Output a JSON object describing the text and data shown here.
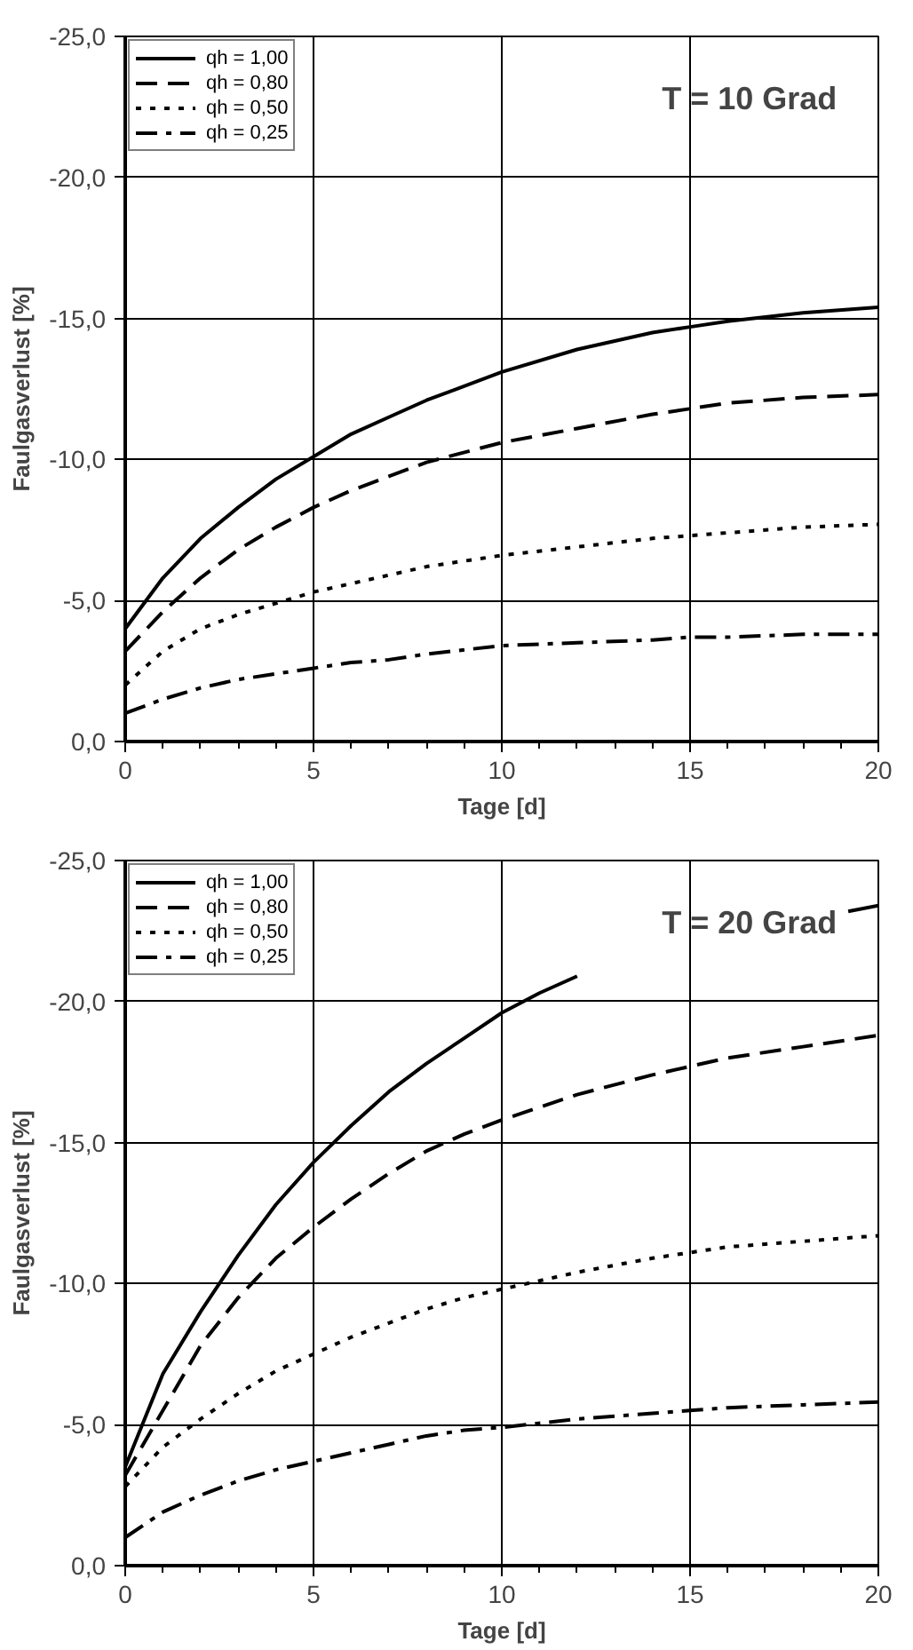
{
  "chart_data": [
    {
      "type": "line",
      "xlabel": "Tage [d]",
      "ylabel": "Faulgasverlust [%]",
      "annotations": [
        "T = 10 Grad"
      ],
      "xlim": [
        0,
        20
      ],
      "ylim": [
        0,
        -25
      ],
      "xticks": [
        0,
        5,
        10,
        15,
        20
      ],
      "yticks": [
        {
          "value": 0,
          "label": "0,0"
        },
        {
          "value": -5,
          "label": "-5,0"
        },
        {
          "value": -10,
          "label": "-10,0"
        },
        {
          "value": -15,
          "label": "-15,0"
        },
        {
          "value": -20,
          "label": "-20,0"
        },
        {
          "value": -25,
          "label": "-25,0"
        }
      ],
      "grid": true,
      "legend": "top left",
      "marker": "none",
      "x": [
        0,
        1,
        2,
        3,
        4,
        5,
        6,
        7,
        8,
        10,
        12,
        14,
        15,
        16,
        18,
        20
      ],
      "series": [
        {
          "name": "qh = 1,00",
          "color": "#000000",
          "line_style": "solid",
          "values": [
            -4.0,
            -5.8,
            -7.2,
            -8.3,
            -9.3,
            -10.1,
            -10.9,
            -11.5,
            -12.1,
            -13.1,
            -13.9,
            -14.5,
            -14.7,
            -14.9,
            -15.2,
            -15.4
          ]
        },
        {
          "name": "qh = 0,80",
          "color": "#000000",
          "line_style": "dashed",
          "values": [
            -3.2,
            -4.6,
            -5.8,
            -6.8,
            -7.6,
            -8.3,
            -8.9,
            -9.4,
            -9.9,
            -10.6,
            -11.1,
            -11.6,
            -11.8,
            -12.0,
            -12.2,
            -12.3
          ]
        },
        {
          "name": "qh = 0,50",
          "color": "#000000",
          "line_style": "dotted",
          "values": [
            -2.0,
            -3.2,
            -4.0,
            -4.5,
            -4.9,
            -5.3,
            -5.6,
            -5.9,
            -6.2,
            -6.6,
            -6.9,
            -7.2,
            -7.3,
            -7.4,
            -7.6,
            -7.7
          ]
        },
        {
          "name": "qh = 0,25",
          "color": "#000000",
          "line_style": "dashdot",
          "values": [
            -1.0,
            -1.5,
            -1.9,
            -2.2,
            -2.4,
            -2.6,
            -2.8,
            -2.9,
            -3.1,
            -3.4,
            -3.5,
            -3.6,
            -3.7,
            -3.7,
            -3.8,
            -3.8
          ]
        }
      ]
    },
    {
      "type": "line",
      "xlabel": "Tage [d]",
      "ylabel": "Faulgasverlust [%]",
      "annotations": [
        "T = 20 Grad"
      ],
      "xlim": [
        0,
        20
      ],
      "ylim": [
        0,
        -25
      ],
      "xticks": [
        0,
        5,
        10,
        15,
        20
      ],
      "yticks": [
        {
          "value": 0,
          "label": "0,0"
        },
        {
          "value": -5,
          "label": "-5,0"
        },
        {
          "value": -10,
          "label": "-10,0"
        },
        {
          "value": -15,
          "label": "-15,0"
        },
        {
          "value": -20,
          "label": "-20,0"
        },
        {
          "value": -25,
          "label": "-25,0"
        }
      ],
      "grid": true,
      "legend": "top left",
      "marker": "none",
      "x": [
        0,
        1,
        2,
        3,
        4,
        5,
        6,
        7,
        8,
        9,
        10,
        12,
        14,
        15,
        16,
        18,
        20
      ],
      "series": [
        {
          "name": "qh = 1,00",
          "color": "#000000",
          "line_style": "solid",
          "x": [
            0,
            1,
            2,
            3,
            4,
            5,
            6,
            7,
            8,
            9,
            10,
            11,
            12,
            15,
            19.2,
            20
          ],
          "values": [
            -3.5,
            -6.8,
            -9.0,
            -11.0,
            -12.8,
            -14.3,
            -15.6,
            -16.8,
            -17.8,
            -18.7,
            -19.6,
            -20.3,
            -20.9,
            null,
            -23.2,
            -23.4
          ]
        },
        {
          "name": "qh = 0,80",
          "color": "#000000",
          "line_style": "dashed",
          "values": [
            -3.2,
            -5.5,
            -7.8,
            -9.5,
            -10.9,
            -12.0,
            -13.0,
            -13.9,
            -14.7,
            -15.3,
            -15.8,
            -16.7,
            -17.4,
            -17.7,
            -18.0,
            -18.4,
            -18.8
          ]
        },
        {
          "name": "qh = 0,50",
          "color": "#000000",
          "line_style": "dotted",
          "values": [
            -2.8,
            -4.2,
            -5.2,
            -6.1,
            -6.9,
            -7.5,
            -8.1,
            -8.6,
            -9.1,
            -9.5,
            -9.8,
            -10.4,
            -10.9,
            -11.1,
            -11.3,
            -11.5,
            -11.7
          ]
        },
        {
          "name": "qh = 0,25",
          "color": "#000000",
          "line_style": "dashdot",
          "values": [
            -1.0,
            -1.9,
            -2.5,
            -3.0,
            -3.4,
            -3.7,
            -4.0,
            -4.3,
            -4.6,
            -4.8,
            -4.9,
            -5.2,
            -5.4,
            -5.5,
            -5.6,
            -5.7,
            -5.8
          ]
        }
      ]
    }
  ]
}
